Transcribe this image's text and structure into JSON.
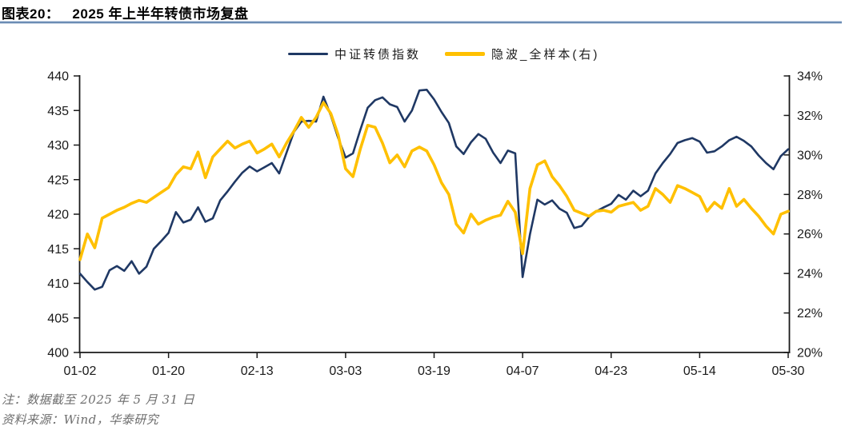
{
  "figure": {
    "label": "图表20：",
    "title": "2025 年上半年转债市场复盘"
  },
  "legend": {
    "series1": "中证转债指数",
    "series2": "隐波_全样本(右)"
  },
  "colors": {
    "navy": "#1f3864",
    "gold": "#ffc000",
    "axis": "#1a1a1a",
    "note_gray": "#6e6e6e",
    "title_rule_blue": "#6b8cb4"
  },
  "notes": {
    "note1": "注：数据截至 2025 年 5 月 31 日",
    "note2": "资料来源：Wind，华泰研究"
  },
  "chart_data": {
    "type": "line",
    "title": "2025 年上半年转债市场复盘",
    "grid": false,
    "legend_position": "top",
    "x_ticks": [
      "01-02",
      "01-20",
      "02-13",
      "03-03",
      "03-19",
      "04-07",
      "04-23",
      "05-14",
      "05-30"
    ],
    "left_axis": {
      "min": 400,
      "max": 440,
      "ticks": [
        400,
        405,
        410,
        415,
        420,
        425,
        430,
        435,
        440
      ]
    },
    "right_axis": {
      "min": 20,
      "max": 34,
      "ticks": [
        20,
        22,
        24,
        26,
        28,
        30,
        32,
        34
      ],
      "unit": "%"
    },
    "x": [
      "01-02",
      "01-03",
      "01-06",
      "01-07",
      "01-08",
      "01-09",
      "01-10",
      "01-13",
      "01-14",
      "01-15",
      "01-16",
      "01-17",
      "01-20",
      "01-21",
      "01-22",
      "01-23",
      "01-24",
      "01-27",
      "02-05",
      "02-06",
      "02-07",
      "02-10",
      "02-11",
      "02-12",
      "02-13",
      "02-14",
      "02-17",
      "02-18",
      "02-19",
      "02-20",
      "02-21",
      "02-24",
      "02-25",
      "02-26",
      "02-27",
      "02-28",
      "03-03",
      "03-04",
      "03-05",
      "03-06",
      "03-07",
      "03-10",
      "03-11",
      "03-12",
      "03-13",
      "03-14",
      "03-17",
      "03-18",
      "03-19",
      "03-20",
      "03-21",
      "03-24",
      "03-25",
      "03-26",
      "03-27",
      "03-28",
      "03-31",
      "04-01",
      "04-02",
      "04-03",
      "04-07",
      "04-08",
      "04-09",
      "04-10",
      "04-11",
      "04-14",
      "04-15",
      "04-16",
      "04-17",
      "04-18",
      "04-21",
      "04-22",
      "04-23",
      "04-24",
      "04-25",
      "04-28",
      "04-29",
      "04-30",
      "05-06",
      "05-07",
      "05-08",
      "05-09",
      "05-12",
      "05-13",
      "05-14",
      "05-15",
      "05-16",
      "05-19",
      "05-20",
      "05-21",
      "05-22",
      "05-23",
      "05-26",
      "05-27",
      "05-28",
      "05-29",
      "05-30"
    ],
    "series": [
      {
        "name": "中证转债指数",
        "axis": "left",
        "color": "#1f3864",
        "values": [
          411.4,
          410.2,
          409.1,
          409.5,
          411.9,
          412.5,
          411.8,
          413.2,
          411.4,
          412.4,
          415.0,
          416.1,
          417.3,
          420.3,
          418.8,
          419.2,
          421.0,
          418.9,
          419.4,
          422.0,
          423.3,
          424.7,
          426.0,
          426.9,
          426.2,
          426.8,
          427.4,
          425.9,
          428.9,
          431.9,
          433.4,
          433.5,
          433.4,
          437.0,
          434.3,
          431.0,
          428.2,
          428.8,
          432.2,
          435.4,
          436.5,
          436.9,
          435.9,
          435.5,
          433.4,
          435.0,
          437.9,
          438.0,
          436.6,
          434.8,
          433.2,
          429.8,
          428.7,
          430.4,
          431.6,
          430.9,
          428.9,
          427.4,
          429.2,
          428.8,
          410.9,
          417.1,
          422.1,
          421.4,
          422.0,
          420.8,
          420.2,
          418.0,
          418.3,
          419.6,
          420.4,
          421.0,
          421.5,
          422.8,
          422.1,
          423.4,
          422.6,
          423.4,
          425.9,
          427.4,
          428.7,
          430.3,
          430.7,
          431.0,
          430.5,
          428.9,
          429.1,
          429.8,
          430.7,
          431.2,
          430.6,
          429.8,
          428.5,
          427.4,
          426.5,
          428.4,
          429.4
        ]
      },
      {
        "name": "隐波_全样本(右)",
        "axis": "right",
        "color": "#ffc000",
        "unit": "%",
        "values": [
          24.7,
          26.0,
          25.3,
          26.8,
          27.0,
          27.2,
          27.35,
          27.55,
          27.7,
          27.6,
          27.85,
          28.1,
          28.35,
          29.0,
          29.4,
          29.3,
          30.15,
          28.85,
          29.9,
          30.3,
          30.7,
          30.35,
          30.55,
          30.7,
          30.1,
          30.3,
          30.55,
          29.9,
          30.6,
          31.2,
          31.9,
          31.4,
          31.9,
          32.65,
          32.1,
          31.0,
          29.3,
          28.9,
          30.3,
          31.5,
          31.4,
          30.6,
          29.6,
          30.0,
          29.4,
          30.2,
          30.4,
          30.2,
          29.5,
          28.6,
          28.0,
          26.5,
          26.05,
          27.0,
          26.5,
          26.7,
          26.85,
          26.95,
          27.65,
          27.1,
          25.0,
          28.3,
          29.5,
          29.7,
          28.9,
          28.45,
          27.9,
          27.2,
          27.05,
          26.9,
          27.15,
          27.2,
          27.1,
          27.4,
          27.5,
          27.6,
          27.2,
          27.4,
          28.3,
          28.0,
          27.6,
          28.45,
          28.3,
          28.1,
          27.9,
          27.15,
          27.6,
          27.3,
          28.3,
          27.4,
          27.75,
          27.3,
          26.9,
          26.4,
          26.0,
          27.0,
          27.15
        ]
      }
    ]
  }
}
